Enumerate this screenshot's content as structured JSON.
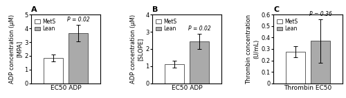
{
  "chart_data": [
    {
      "type": "bar",
      "title": "A",
      "categories": [
        null
      ],
      "tick_labels": "y",
      "x_label": "EC50 ADP",
      "y_label": "ADP concentration (μM)\n[MPA]",
      "ylim": [
        0,
        5
      ],
      "yticks": [
        0,
        1,
        2,
        3,
        4,
        5
      ],
      "legend": "upper left",
      "annotations": [
        "P = 0.02"
      ],
      "series": [
        {
          "name": "MetS",
          "color": "white",
          "values": [
            1.85
          ],
          "errors": [
            0.25
          ]
        },
        {
          "name": "Lean",
          "color": "#aaaaaa",
          "values": [
            3.65
          ],
          "errors": [
            0.6
          ]
        }
      ]
    },
    {
      "type": "bar",
      "title": "B",
      "categories": [
        null
      ],
      "tick_labels": "y",
      "x_label": "EC50 ADP",
      "y_label": "ADP concentration (μM)\n[SLOPE]",
      "ylim": [
        0,
        4
      ],
      "yticks": [
        0,
        1,
        2,
        3,
        4
      ],
      "legend": "upper left",
      "annotations": [
        "P = 0.02"
      ],
      "series": [
        {
          "name": "MetS",
          "color": "white",
          "values": [
            1.1
          ],
          "errors": [
            0.2
          ]
        },
        {
          "name": "Lean",
          "color": "#aaaaaa",
          "values": [
            2.45
          ],
          "errors": [
            0.45
          ]
        }
      ]
    },
    {
      "type": "bar",
      "title": "C",
      "categories": [
        null
      ],
      "tick_labels": "y",
      "x_label": "Thrombin EC50",
      "y_label": "Thrombin concentration\n(U/mL)",
      "ylim": [
        0,
        0.6
      ],
      "yticks": [
        0,
        0.1,
        0.2,
        0.3,
        0.4,
        0.5,
        0.6
      ],
      "legend": "upper left",
      "annotations": [
        "P = 0.36"
      ],
      "series": [
        {
          "name": "MetS",
          "color": "white",
          "values": [
            0.275
          ],
          "errors": [
            0.05
          ]
        },
        {
          "name": "Lean",
          "color": "#aaaaaa",
          "values": [
            0.37
          ],
          "errors": [
            0.19
          ]
        }
      ]
    }
  ]
}
